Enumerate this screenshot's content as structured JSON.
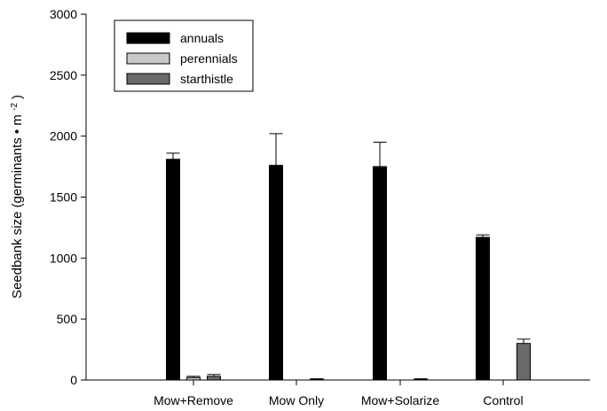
{
  "chart_data": {
    "type": "bar",
    "categories": [
      "Mow+Remove",
      "Mow Only",
      "Mow+Solarize",
      "Control"
    ],
    "series": [
      {
        "name": "annuals",
        "color": "#000000",
        "values": [
          1810,
          1760,
          1750,
          1170
        ],
        "errors": [
          50,
          260,
          200,
          20
        ]
      },
      {
        "name": "perennials",
        "color": "#c8c8c8",
        "values": [
          20,
          0,
          0,
          0
        ],
        "errors": [
          10,
          0,
          0,
          0
        ]
      },
      {
        "name": "starthistle",
        "color": "#6a6a6a",
        "values": [
          30,
          5,
          5,
          300
        ],
        "errors": [
          15,
          5,
          5,
          35
        ]
      }
    ],
    "ylabel_main": "Seedbank size (germinants",
    "ylabel_bullet": "•",
    "ylabel_unit": "m",
    "ylabel_exp": "-2",
    "ylabel_close": ")",
    "ylim": [
      0,
      3000
    ],
    "yticks": [
      "0",
      "500",
      "1000",
      "1500",
      "2000",
      "2500",
      "3000"
    ],
    "legend_position": "top-left",
    "grid": false
  }
}
